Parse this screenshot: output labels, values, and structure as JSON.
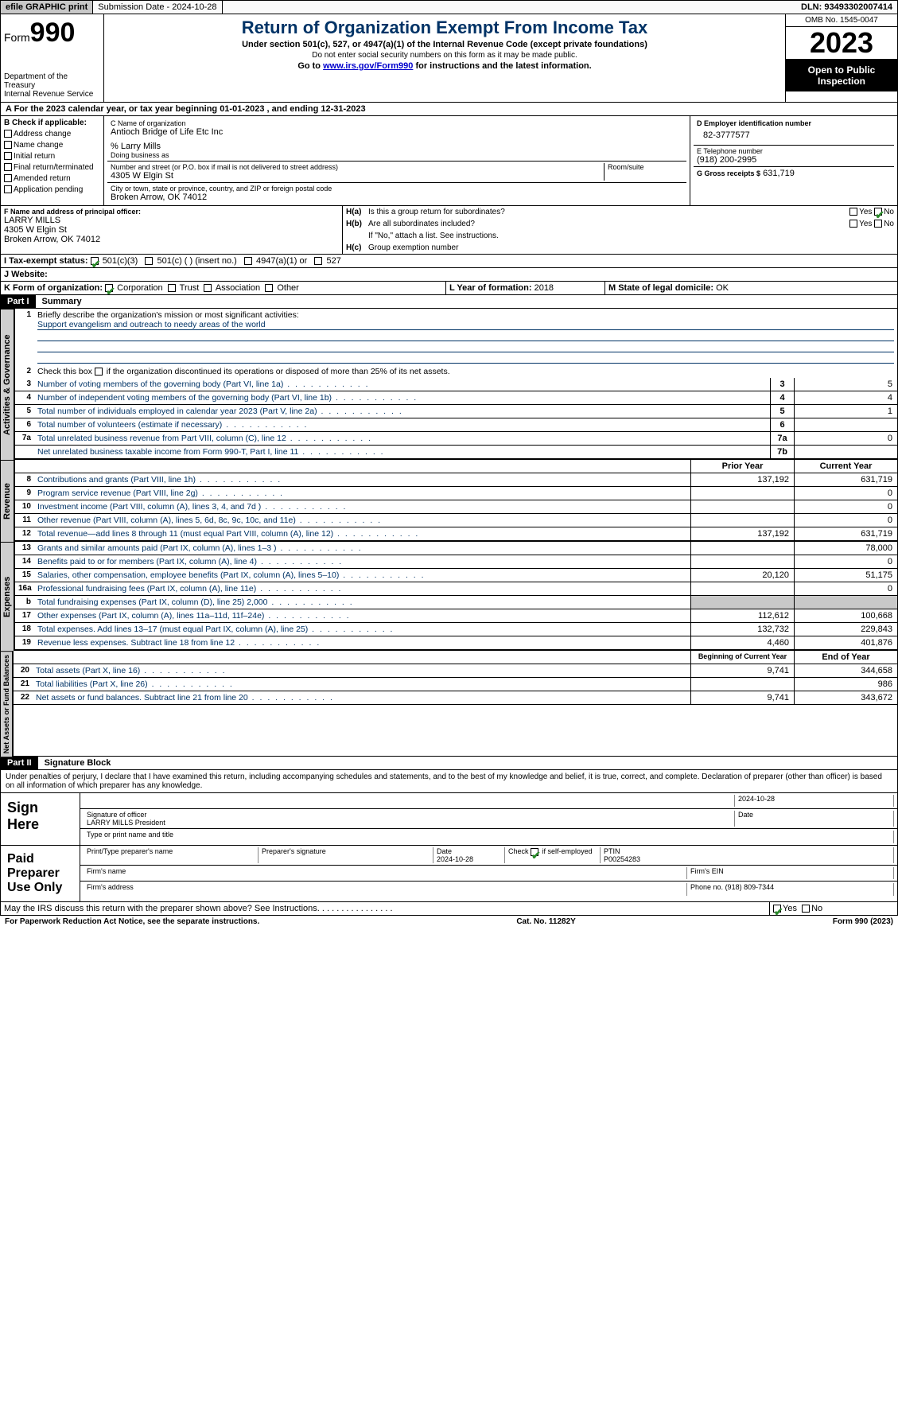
{
  "topbar": {
    "efile": "efile GRAPHIC print",
    "submission": "Submission Date - 2024-10-28",
    "dln": "DLN: 93493302007414"
  },
  "header": {
    "form_label": "Form",
    "form_number": "990",
    "dept": "Department of the Treasury",
    "irs": "Internal Revenue Service",
    "title": "Return of Organization Exempt From Income Tax",
    "sub1": "Under section 501(c), 527, or 4947(a)(1) of the Internal Revenue Code (except private foundations)",
    "sub2": "Do not enter social security numbers on this form as it may be made public.",
    "sub3_prefix": "Go to ",
    "sub3_link": "www.irs.gov/Form990",
    "sub3_suffix": " for instructions and the latest information.",
    "omb": "OMB No. 1545-0047",
    "year": "2023",
    "open": "Open to Public Inspection"
  },
  "section_a": "A  For the 2023 calendar year, or tax year beginning 01-01-2023    , and ending 12-31-2023",
  "box_b": {
    "label": "B Check if applicable:",
    "items": [
      "Address change",
      "Name change",
      "Initial return",
      "Final return/terminated",
      "Amended return",
      "Application pending"
    ]
  },
  "box_c": {
    "label_name": "C Name of organization",
    "name": "Antioch Bridge of Life Etc Inc",
    "care_of": "% Larry Mills",
    "dba_label": "Doing business as",
    "street_label": "Number and street (or P.O. box if mail is not delivered to street address)",
    "room_label": "Room/suite",
    "street": "4305 W Elgin St",
    "city_label": "City or town, state or province, country, and ZIP or foreign postal code",
    "city": "Broken Arrow, OK  74012"
  },
  "box_d": {
    "label": "D Employer identification number",
    "value": "82-3777577"
  },
  "box_e": {
    "label": "E Telephone number",
    "value": "(918) 200-2995"
  },
  "box_g": {
    "label": "G Gross receipts $",
    "value": "631,719"
  },
  "box_f": {
    "label": "F  Name and address of principal officer:",
    "name": "LARRY MILLS",
    "street": "4305 W Elgin St",
    "city": "Broken Arrow, OK  74012"
  },
  "box_h": {
    "a_label": "H(a)",
    "a_text": "Is this a group return for subordinates?",
    "b_label": "H(b)",
    "b_text": "Are all subordinates included?",
    "note": "If \"No,\" attach a list. See instructions.",
    "c_label": "H(c)",
    "c_text": "Group exemption number",
    "yes": "Yes",
    "no": "No"
  },
  "box_i": {
    "label": "I   Tax-exempt status:",
    "opts": [
      "501(c)(3)",
      "501(c) (  ) (insert no.)",
      "4947(a)(1) or",
      "527"
    ]
  },
  "box_j": {
    "label": "J   Website:"
  },
  "box_k": {
    "label": "K Form of organization:",
    "opts": [
      "Corporation",
      "Trust",
      "Association",
      "Other"
    ]
  },
  "box_l": {
    "label": "L Year of formation:",
    "value": "2018"
  },
  "box_m": {
    "label": "M State of legal domicile:",
    "value": "OK"
  },
  "parts": {
    "p1": "Part I",
    "p1_title": "Summary",
    "p2": "Part II",
    "p2_title": "Signature Block"
  },
  "vtabs": {
    "gov": "Activities & Governance",
    "rev": "Revenue",
    "exp": "Expenses",
    "net": "Net Assets or Fund Balances"
  },
  "summary": {
    "line1_label": "Briefly describe the organization's mission or most significant activities:",
    "line1_text": "Support evangelism and outreach to needy areas of the world",
    "line2": "Check this box      if the organization discontinued its operations or disposed of more than 25% of its net assets.",
    "rows_gov": [
      {
        "n": "3",
        "d": "Number of voting members of the governing body (Part VI, line 1a)",
        "box": "3",
        "v": "5"
      },
      {
        "n": "4",
        "d": "Number of independent voting members of the governing body (Part VI, line 1b)",
        "box": "4",
        "v": "4"
      },
      {
        "n": "5",
        "d": "Total number of individuals employed in calendar year 2023 (Part V, line 2a)",
        "box": "5",
        "v": "1"
      },
      {
        "n": "6",
        "d": "Total number of volunteers (estimate if necessary)",
        "box": "6",
        "v": ""
      },
      {
        "n": "7a",
        "d": "Total unrelated business revenue from Part VIII, column (C), line 12",
        "box": "7a",
        "v": "0"
      },
      {
        "n": "",
        "d": "Net unrelated business taxable income from Form 990-T, Part I, line 11",
        "box": "7b",
        "v": ""
      }
    ],
    "col_prior": "Prior Year",
    "col_current": "Current Year",
    "rows_rev": [
      {
        "n": "8",
        "d": "Contributions and grants (Part VIII, line 1h)",
        "py": "137,192",
        "cy": "631,719"
      },
      {
        "n": "9",
        "d": "Program service revenue (Part VIII, line 2g)",
        "py": "",
        "cy": "0"
      },
      {
        "n": "10",
        "d": "Investment income (Part VIII, column (A), lines 3, 4, and 7d )",
        "py": "",
        "cy": "0"
      },
      {
        "n": "11",
        "d": "Other revenue (Part VIII, column (A), lines 5, 6d, 8c, 9c, 10c, and 11e)",
        "py": "",
        "cy": "0"
      },
      {
        "n": "12",
        "d": "Total revenue—add lines 8 through 11 (must equal Part VIII, column (A), line 12)",
        "py": "137,192",
        "cy": "631,719"
      }
    ],
    "rows_exp": [
      {
        "n": "13",
        "d": "Grants and similar amounts paid (Part IX, column (A), lines 1–3 )",
        "py": "",
        "cy": "78,000"
      },
      {
        "n": "14",
        "d": "Benefits paid to or for members (Part IX, column (A), line 4)",
        "py": "",
        "cy": "0"
      },
      {
        "n": "15",
        "d": "Salaries, other compensation, employee benefits (Part IX, column (A), lines 5–10)",
        "py": "20,120",
        "cy": "51,175"
      },
      {
        "n": "16a",
        "d": "Professional fundraising fees (Part IX, column (A), line 11e)",
        "py": "",
        "cy": "0"
      },
      {
        "n": "b",
        "d": "Total fundraising expenses (Part IX, column (D), line 25) 2,000",
        "py": "shaded",
        "cy": "shaded"
      },
      {
        "n": "17",
        "d": "Other expenses (Part IX, column (A), lines 11a–11d, 11f–24e)",
        "py": "112,612",
        "cy": "100,668"
      },
      {
        "n": "18",
        "d": "Total expenses. Add lines 13–17 (must equal Part IX, column (A), line 25)",
        "py": "132,732",
        "cy": "229,843"
      },
      {
        "n": "19",
        "d": "Revenue less expenses. Subtract line 18 from line 12",
        "py": "4,460",
        "cy": "401,876"
      }
    ],
    "col_begin": "Beginning of Current Year",
    "col_end": "End of Year",
    "rows_net": [
      {
        "n": "20",
        "d": "Total assets (Part X, line 16)",
        "py": "9,741",
        "cy": "344,658"
      },
      {
        "n": "21",
        "d": "Total liabilities (Part X, line 26)",
        "py": "",
        "cy": "986"
      },
      {
        "n": "22",
        "d": "Net assets or fund balances. Subtract line 21 from line 20",
        "py": "9,741",
        "cy": "343,672"
      }
    ]
  },
  "declaration": "Under penalties of perjury, I declare that I have examined this return, including accompanying schedules and statements, and to the best of my knowledge and belief, it is true, correct, and complete. Declaration of preparer (other than officer) is based on all information of which preparer has any knowledge.",
  "sign": {
    "here": "Sign Here",
    "sig_officer": "Signature of officer",
    "officer_name": "LARRY MILLS  President",
    "type_name": "Type or print name and title",
    "date_label": "Date",
    "date": "2024-10-28"
  },
  "preparer": {
    "label": "Paid Preparer Use Only",
    "print_name": "Print/Type preparer's name",
    "sig": "Preparer's signature",
    "date_label": "Date",
    "date": "2024-10-28",
    "check_label": "Check",
    "self_emp": "if self-employed",
    "ptin_label": "PTIN",
    "ptin": "P00254283",
    "firm_name": "Firm's name",
    "firm_ein": "Firm's EIN",
    "firm_addr": "Firm's address",
    "phone_label": "Phone no.",
    "phone": "(918) 809-7344"
  },
  "discuss": {
    "text": "May the IRS discuss this return with the preparer shown above? See Instructions.",
    "yes": "Yes",
    "no": "No"
  },
  "footer": {
    "left": "For Paperwork Reduction Act Notice, see the separate instructions.",
    "mid": "Cat. No. 11282Y",
    "right": "Form 990 (2023)"
  },
  "colors": {
    "navy": "#003366",
    "green": "#2a8a2a",
    "grey": "#c8c8c8"
  }
}
